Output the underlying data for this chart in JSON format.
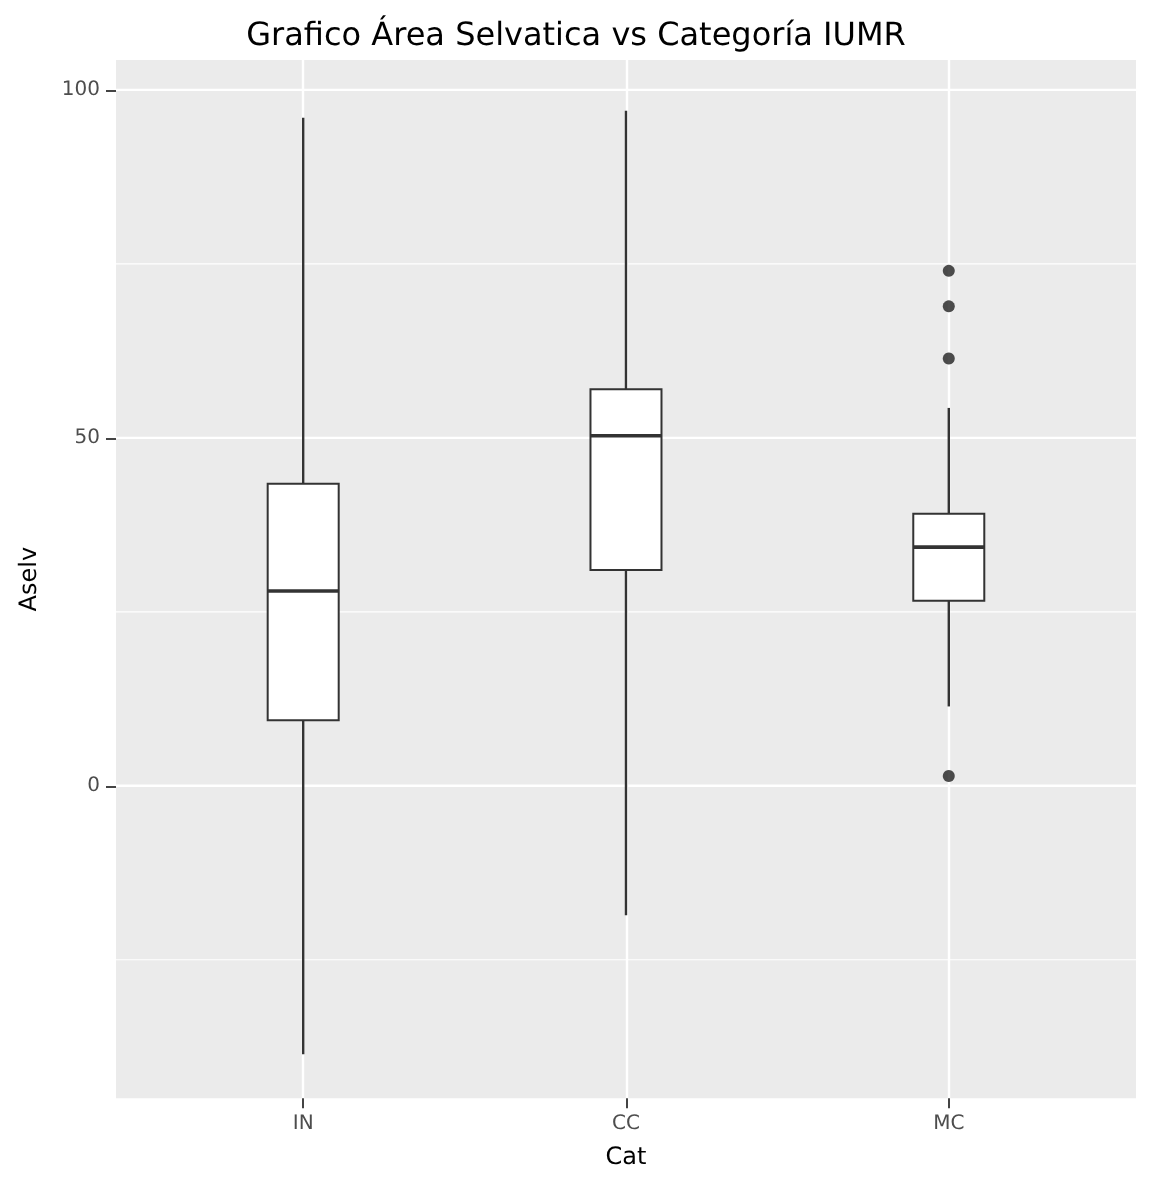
{
  "chart_data": {
    "type": "box",
    "title": "Grafico Área Selvatica vs Categoría IUMR",
    "xlabel": "Cat",
    "ylabel": "Aselv",
    "categories": [
      "IN",
      "CC",
      "MC"
    ],
    "ylim": [
      -44.9,
      104.3
    ],
    "yticks": [
      {
        "value": -25,
        "label": null
      },
      0,
      {
        "value": 25,
        "label": null
      },
      50,
      {
        "value": 75,
        "label": null
      },
      100
    ],
    "grid": true,
    "boxes": [
      {
        "low": -38.6,
        "q1": 9.4,
        "median": 28,
        "q3": 43.4,
        "high": 96
      },
      {
        "low": -18.6,
        "q1": 31,
        "median": 50.3,
        "q3": 57,
        "high": 97
      },
      {
        "low": 11.4,
        "q1": 26.6,
        "median": 34.3,
        "q3": 39.1,
        "high": 54.3,
        "outliers": [
          74,
          68.9,
          61.4,
          1.4
        ]
      }
    ]
  }
}
